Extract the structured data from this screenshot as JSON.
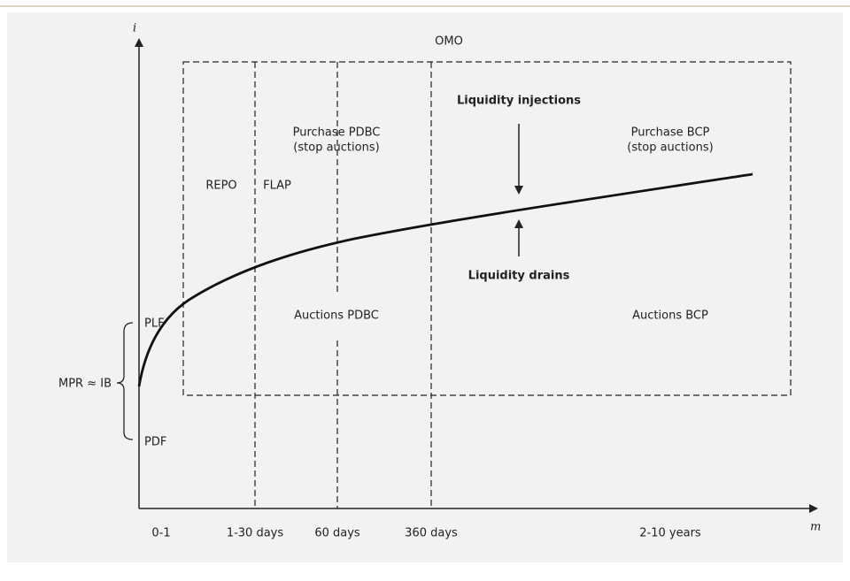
{
  "axes": {
    "y_label": "i",
    "x_label": "m"
  },
  "regions": {
    "omo": "OMO",
    "repo": "REPO",
    "flap": "FLAP",
    "purchase_pdbc": [
      "Purchase PDBC",
      "(stop auctions)"
    ],
    "purchase_bcp": [
      "Purchase BCP",
      "(stop auctions)"
    ],
    "auctions_pdbc": "Auctions PDBC",
    "auctions_bcp": "Auctions BCP"
  },
  "arrows": {
    "injections": "Liquidity injections",
    "drains": "Liquidity drains"
  },
  "corridor": {
    "upper": "PLF",
    "lower": "PDF",
    "center": "MPR ≈ IB"
  },
  "maturities": [
    "0-1",
    "1-30 days",
    "60 days",
    "360 days",
    "2-10 years"
  ]
}
